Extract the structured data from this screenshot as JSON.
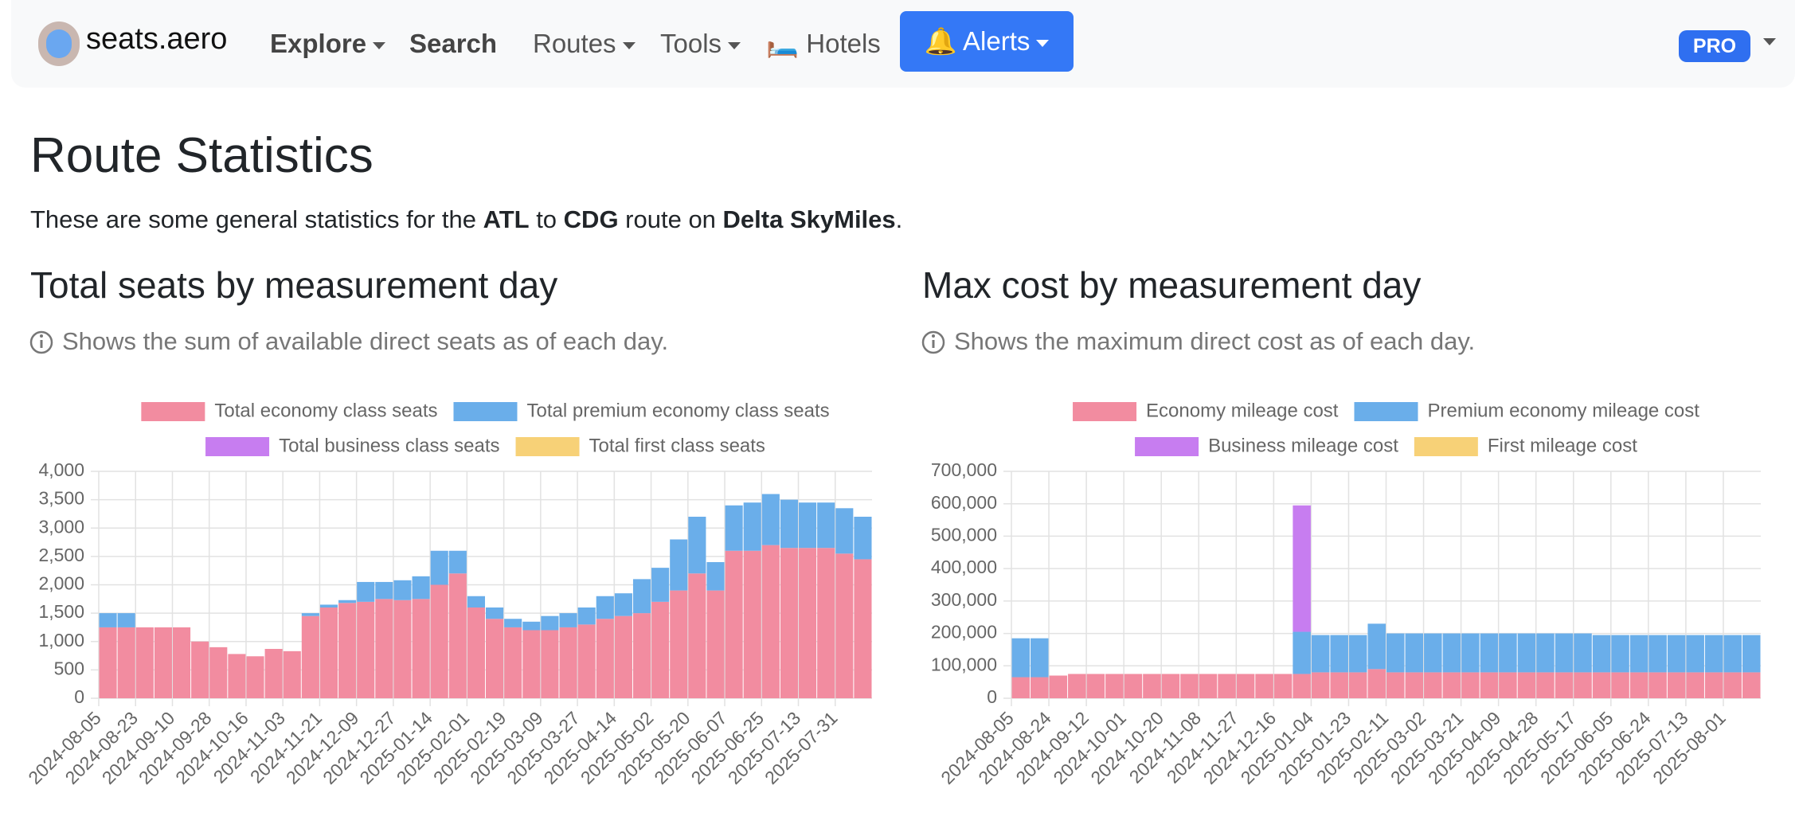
{
  "nav": {
    "brand": "seats.aero",
    "items": [
      "Explore",
      "Search",
      "Routes",
      "Tools",
      "🛏️ Hotels"
    ],
    "alerts": "🔔 Alerts",
    "pro": "PRO"
  },
  "heading": "Route Statistics",
  "intro": [
    "These are some general statistics for the ",
    "ATL",
    " to ",
    "CDG",
    " route on ",
    "Delta SkyMiles",
    "."
  ],
  "chart_data": [
    {
      "type": "bar",
      "title": "Total seats by measurement day",
      "subtitle": "Shows the sum of available direct seats as of each day.",
      "stacked": true,
      "grid": true,
      "categories": [
        "2024-08-05",
        null,
        "2024-08-23",
        null,
        "2024-09-10",
        null,
        "2024-09-28",
        null,
        "2024-10-16",
        null,
        "2024-11-03",
        null,
        "2024-11-21",
        null,
        "2024-12-09",
        null,
        "2024-12-27",
        null,
        "2025-01-14",
        null,
        "2025-02-01",
        null,
        "2025-02-19",
        null,
        "2025-03-09",
        null,
        "2025-03-27",
        null,
        "2025-04-14",
        null,
        "2025-05-02",
        null,
        "2025-05-20",
        null,
        "2025-06-07",
        null,
        "2025-06-25",
        null,
        "2025-07-13",
        null,
        "2025-07-31",
        null
      ],
      "series": [
        {
          "name": "Total economy class seats",
          "color": "#f28ca0",
          "values": [
            1250,
            1250,
            1250,
            1250,
            1250,
            1000,
            900,
            780,
            740,
            870,
            830,
            1450,
            1600,
            1680,
            1700,
            1750,
            1730,
            1750,
            2000,
            2200,
            1600,
            1400,
            1250,
            1200,
            1200,
            1250,
            1300,
            1400,
            1450,
            1500,
            1700,
            1900,
            2200,
            1900,
            2600,
            2600,
            2700,
            2650,
            2650,
            2650,
            2550,
            2450
          ]
        },
        {
          "name": "Total premium economy class seats",
          "color": "#6aaeea",
          "values": [
            250,
            250,
            0,
            0,
            0,
            0,
            0,
            0,
            0,
            0,
            0,
            50,
            50,
            50,
            350,
            300,
            350,
            400,
            600,
            400,
            200,
            200,
            150,
            150,
            250,
            250,
            300,
            400,
            400,
            600,
            600,
            900,
            1000,
            500,
            800,
            850,
            900,
            850,
            800,
            800,
            800,
            750
          ]
        },
        {
          "name": "Total business class seats",
          "color": "#c77df0",
          "values": [
            0,
            0,
            0,
            0,
            0,
            0,
            0,
            0,
            0,
            0,
            0,
            0,
            0,
            0,
            0,
            0,
            0,
            0,
            0,
            0,
            0,
            0,
            0,
            0,
            0,
            0,
            0,
            0,
            0,
            0,
            0,
            0,
            0,
            0,
            0,
            0,
            0,
            0,
            0,
            0,
            0,
            0
          ]
        },
        {
          "name": "Total first class seats",
          "color": "#f7d177",
          "values": [
            0,
            0,
            0,
            0,
            0,
            0,
            0,
            0,
            0,
            0,
            0,
            0,
            0,
            0,
            0,
            0,
            0,
            0,
            0,
            0,
            0,
            0,
            0,
            0,
            0,
            0,
            0,
            0,
            0,
            0,
            0,
            0,
            0,
            0,
            0,
            0,
            0,
            0,
            0,
            0,
            0,
            0
          ]
        }
      ],
      "ylim": [
        0,
        4000
      ],
      "yticks": [
        0,
        500,
        {
          "value": 1000,
          "label": "1,000"
        },
        {
          "value": 1500,
          "label": "1,500"
        },
        {
          "value": 2000,
          "label": "2,000"
        },
        {
          "value": 2500,
          "label": "2,500"
        },
        {
          "value": 3000,
          "label": "3,000"
        },
        {
          "value": 3500,
          "label": "3,500"
        },
        {
          "value": 4000,
          "label": "4,000"
        }
      ]
    },
    {
      "type": "bar",
      "title": "Max cost by measurement day",
      "subtitle": "Shows the maximum direct cost as of each day.",
      "stacked": true,
      "grid": true,
      "categories": [
        "2024-08-05",
        null,
        "2024-08-24",
        null,
        "2024-09-12",
        null,
        "2024-10-01",
        null,
        "2024-10-20",
        null,
        "2024-11-08",
        null,
        "2024-11-27",
        null,
        "2024-12-16",
        null,
        "2025-01-04",
        null,
        "2025-01-23",
        null,
        "2025-02-11",
        null,
        "2025-03-02",
        null,
        "2025-03-21",
        null,
        "2025-04-09",
        null,
        "2025-04-28",
        null,
        "2025-05-17",
        null,
        "2025-06-05",
        null,
        "2025-06-24",
        null,
        "2025-07-13",
        null,
        "2025-08-01",
        null
      ],
      "series": [
        {
          "name": "Economy mileage cost",
          "color": "#f28ca0",
          "values": [
            65000,
            65000,
            70000,
            75000,
            75000,
            75000,
            75000,
            75000,
            75000,
            75000,
            75000,
            75000,
            75000,
            75000,
            75000,
            75000,
            80000,
            80000,
            80000,
            90000,
            80000,
            80000,
            80000,
            80000,
            80000,
            80000,
            80000,
            80000,
            80000,
            80000,
            80000,
            80000,
            80000,
            80000,
            80000,
            80000,
            80000,
            80000,
            80000,
            80000
          ]
        },
        {
          "name": "Premium economy mileage cost",
          "color": "#6aaeea",
          "values": [
            120000,
            120000,
            0,
            0,
            0,
            0,
            0,
            0,
            0,
            0,
            0,
            0,
            0,
            0,
            0,
            130000,
            115000,
            115000,
            115000,
            140000,
            120000,
            120000,
            120000,
            120000,
            120000,
            120000,
            120000,
            120000,
            120000,
            120000,
            120000,
            115000,
            115000,
            115000,
            115000,
            115000,
            115000,
            115000,
            115000,
            115000
          ]
        },
        {
          "name": "Business mileage cost",
          "color": "#c77df0",
          "values": [
            0,
            0,
            0,
            0,
            0,
            0,
            0,
            0,
            0,
            0,
            0,
            0,
            0,
            0,
            0,
            390000,
            0,
            0,
            0,
            0,
            0,
            0,
            0,
            0,
            0,
            0,
            0,
            0,
            0,
            0,
            0,
            0,
            0,
            0,
            0,
            0,
            0,
            0,
            0,
            0
          ]
        },
        {
          "name": "First mileage cost",
          "color": "#f7d177",
          "values": [
            0,
            0,
            0,
            0,
            0,
            0,
            0,
            0,
            0,
            0,
            0,
            0,
            0,
            0,
            0,
            0,
            0,
            0,
            0,
            0,
            0,
            0,
            0,
            0,
            0,
            0,
            0,
            0,
            0,
            0,
            0,
            0,
            0,
            0,
            0,
            0,
            0,
            0,
            0,
            0
          ]
        }
      ],
      "ylim": [
        0,
        700000
      ],
      "yticks": [
        0,
        {
          "value": 100000,
          "label": "100,000"
        },
        {
          "value": 200000,
          "label": "200,000"
        },
        {
          "value": 300000,
          "label": "300,000"
        },
        {
          "value": 400000,
          "label": "400,000"
        },
        {
          "value": 500000,
          "label": "500,000"
        },
        {
          "value": 600000,
          "label": "600,000"
        },
        {
          "value": 700000,
          "label": "700,000"
        }
      ]
    }
  ]
}
